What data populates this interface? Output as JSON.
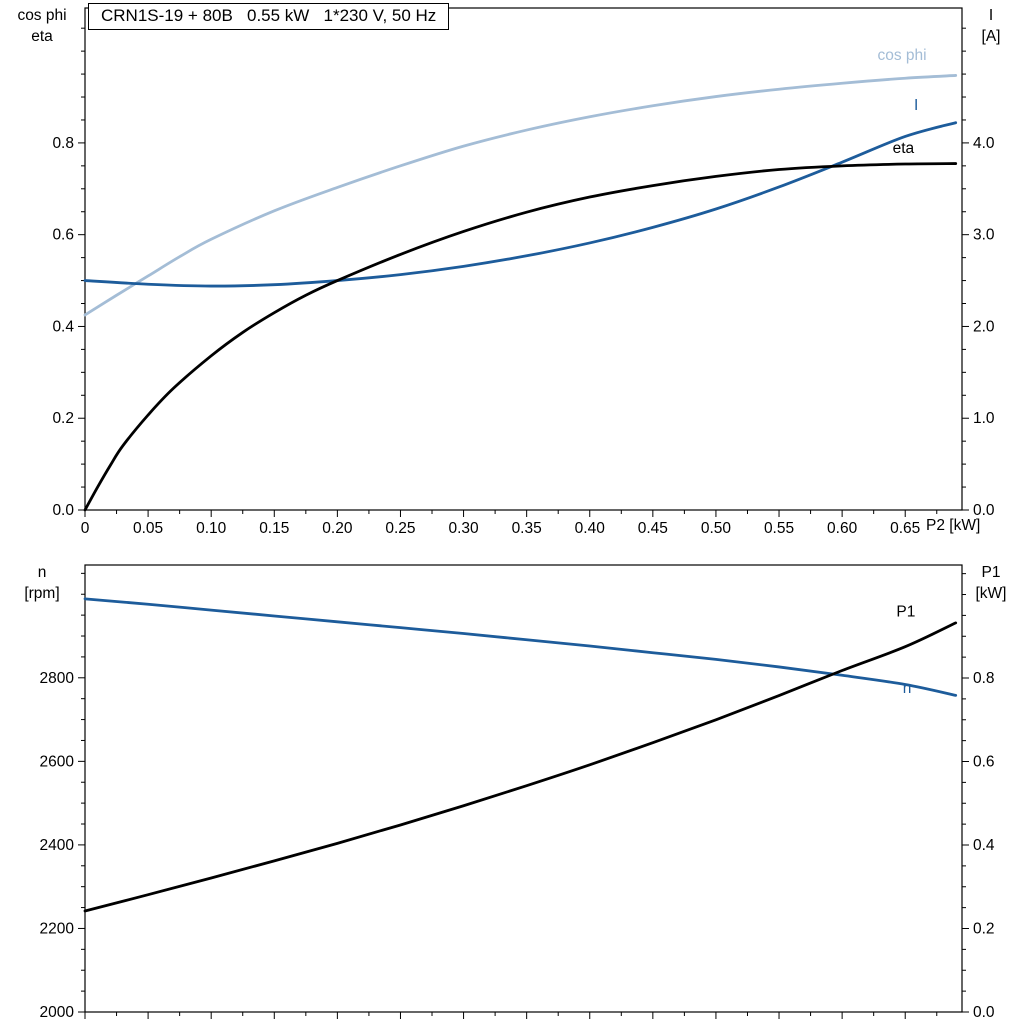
{
  "header": {
    "title_box": "CRN1S-19 + 80B   0.55 kW   1*230 V, 50 Hz"
  },
  "colors": {
    "black": "#000000",
    "dark_blue": "#1d5c9b",
    "light_blue": "#a4bdd6"
  },
  "chart_data": [
    {
      "type": "line",
      "name": "motor-electrical-curves",
      "x_axis": {
        "label": "P2 [kW]",
        "min": 0,
        "max": 0.695,
        "minor_step": 0.025,
        "ticks": [
          0,
          0.05,
          0.1,
          0.15,
          0.2,
          0.25,
          0.3,
          0.35,
          0.4,
          0.45,
          0.5,
          0.55,
          0.6,
          0.65
        ],
        "tick_labels": [
          "0",
          "0.05",
          "0.10",
          "0.15",
          "0.20",
          "0.25",
          "0.30",
          "0.35",
          "0.40",
          "0.45",
          "0.50",
          "0.55",
          "0.60",
          "0.65"
        ]
      },
      "left_axis": {
        "title_lines": [
          "cos phi",
          "eta"
        ],
        "min": 0,
        "max": 1.094,
        "minor_step": 0.05,
        "ticks": [
          0.0,
          0.2,
          0.4,
          0.6,
          0.8
        ],
        "tick_labels": [
          "0.0",
          "0.2",
          "0.4",
          "0.6",
          "0.8"
        ]
      },
      "right_axis": {
        "title_lines": [
          "I",
          "[A]"
        ],
        "min": 0,
        "max": 5.47,
        "minor_step": 0.25,
        "ticks": [
          0.0,
          1.0,
          2.0,
          3.0,
          4.0
        ],
        "tick_labels": [
          "0.0",
          "1.0",
          "2.0",
          "3.0",
          "4.0"
        ]
      },
      "series": [
        {
          "name": "cos phi",
          "axis": "left",
          "color": "light_blue",
          "label": {
            "text": "cos phi",
            "x": 0.628,
            "y": 0.981
          },
          "x": [
            0,
            0.025,
            0.05,
            0.075,
            0.1,
            0.15,
            0.2,
            0.25,
            0.3,
            0.35,
            0.4,
            0.45,
            0.5,
            0.55,
            0.6,
            0.65,
            0.69
          ],
          "y": [
            0.425,
            0.468,
            0.51,
            0.552,
            0.59,
            0.652,
            0.703,
            0.75,
            0.793,
            0.828,
            0.857,
            0.881,
            0.901,
            0.917,
            0.93,
            0.941,
            0.947
          ]
        },
        {
          "name": "I",
          "axis": "right",
          "color": "dark_blue",
          "label": {
            "text": "I",
            "x": 0.657,
            "y": 4.36
          },
          "x": [
            0,
            0.05,
            0.1,
            0.15,
            0.2,
            0.25,
            0.3,
            0.35,
            0.4,
            0.45,
            0.5,
            0.55,
            0.6,
            0.65,
            0.69
          ],
          "y": [
            2.5,
            2.46,
            2.44,
            2.455,
            2.5,
            2.565,
            2.655,
            2.77,
            2.91,
            3.08,
            3.28,
            3.52,
            3.79,
            4.07,
            4.22
          ]
        },
        {
          "name": "eta",
          "axis": "left",
          "color": "black",
          "label": {
            "text": "eta",
            "x": 0.64,
            "y": 0.778
          },
          "x": [
            0,
            0.01,
            0.02,
            0.03,
            0.05,
            0.07,
            0.1,
            0.125,
            0.15,
            0.175,
            0.2,
            0.25,
            0.3,
            0.35,
            0.4,
            0.45,
            0.5,
            0.55,
            0.6,
            0.65,
            0.69
          ],
          "y": [
            0,
            0.05,
            0.097,
            0.14,
            0.207,
            0.265,
            0.336,
            0.387,
            0.43,
            0.468,
            0.5,
            0.557,
            0.607,
            0.649,
            0.682,
            0.707,
            0.727,
            0.742,
            0.75,
            0.754,
            0.755
          ]
        }
      ]
    },
    {
      "type": "line",
      "name": "speed-and-input-power-curves",
      "x_axis": {
        "label": "",
        "min": 0,
        "max": 0.695,
        "minor_step": 0.025,
        "ticks": [
          0,
          0.05,
          0.1,
          0.15,
          0.2,
          0.25,
          0.3,
          0.35,
          0.4,
          0.45,
          0.5,
          0.55,
          0.6,
          0.65
        ],
        "tick_labels": []
      },
      "left_axis": {
        "title_lines": [
          "n",
          "[rpm]"
        ],
        "min": 2000,
        "max": 3070,
        "minor_step": 50,
        "ticks": [
          2000,
          2200,
          2400,
          2600,
          2800
        ],
        "tick_labels": [
          "2000",
          "2200",
          "2400",
          "2600",
          "2800"
        ]
      },
      "right_axis": {
        "title_lines": [
          "P1",
          "[kW]"
        ],
        "min": 0,
        "max": 1.0707,
        "minor_step": 0.05,
        "ticks": [
          0.0,
          0.2,
          0.4,
          0.6,
          0.8
        ],
        "tick_labels": [
          "0.0",
          "0.2",
          "0.4",
          "0.6",
          "0.8"
        ]
      },
      "series": [
        {
          "name": "n",
          "axis": "left",
          "color": "dark_blue",
          "label": {
            "text": "n",
            "x": 0.648,
            "y": 2764
          },
          "x": [
            0,
            0.05,
            0.1,
            0.15,
            0.2,
            0.25,
            0.3,
            0.35,
            0.4,
            0.45,
            0.5,
            0.55,
            0.6,
            0.65,
            0.69
          ],
          "y": [
            2989,
            2976,
            2962,
            2948,
            2934,
            2920,
            2906,
            2891,
            2876,
            2860,
            2844,
            2826,
            2806,
            2784,
            2758
          ]
        },
        {
          "name": "P1",
          "axis": "right",
          "color": "black",
          "label": {
            "text": "P1",
            "x": 0.643,
            "y": 0.947
          },
          "x": [
            0,
            0.05,
            0.1,
            0.15,
            0.2,
            0.25,
            0.3,
            0.35,
            0.4,
            0.45,
            0.5,
            0.55,
            0.6,
            0.65,
            0.69
          ],
          "y": [
            0.242,
            0.281,
            0.321,
            0.362,
            0.404,
            0.448,
            0.494,
            0.542,
            0.592,
            0.645,
            0.7,
            0.758,
            0.818,
            0.875,
            0.932
          ]
        }
      ]
    }
  ]
}
